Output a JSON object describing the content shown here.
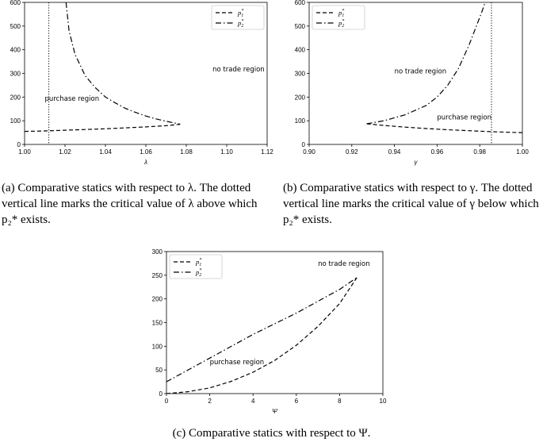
{
  "chart_data": [
    {
      "type": "line",
      "xlabel": "λ",
      "ylabel": "",
      "xlim": [
        1.0,
        1.12
      ],
      "ylim": [
        0,
        600
      ],
      "xticks": [
        "1.00",
        "1.02",
        "1.04",
        "1.06",
        "1.08",
        "1.10",
        "1.12"
      ],
      "yticks": [
        "0",
        "100",
        "200",
        "300",
        "400",
        "500",
        "600"
      ],
      "legend": {
        "placement": "top-right",
        "entries": [
          {
            "base": "p",
            "sub": "1",
            "sup": "*"
          },
          {
            "base": "p",
            "sub": "2",
            "sup": "*"
          }
        ]
      },
      "vline": {
        "x": 1.012,
        "style": "dotted"
      },
      "annotations": [
        {
          "text": "no trade region",
          "x": 1.093,
          "y": 308
        },
        {
          "text": "purchase region",
          "x": 1.01,
          "y": 185
        }
      ],
      "series": [
        {
          "name": "p1*",
          "style": "dashed",
          "x": [
            1.0,
            1.01,
            1.02,
            1.03,
            1.04,
            1.05,
            1.06,
            1.07,
            1.077
          ],
          "y": [
            55,
            57,
            60,
            63,
            66,
            70,
            74,
            79,
            85
          ]
        },
        {
          "name": "p2*",
          "style": "dashdot",
          "x": [
            1.0205,
            1.022,
            1.025,
            1.03,
            1.035,
            1.04,
            1.045,
            1.05,
            1.055,
            1.06,
            1.065,
            1.07,
            1.075,
            1.077
          ],
          "y": [
            600,
            480,
            380,
            290,
            240,
            200,
            175,
            152,
            135,
            120,
            108,
            98,
            89,
            85
          ]
        }
      ]
    },
    {
      "type": "line",
      "xlabel": "γ",
      "ylabel": "",
      "xlim": [
        0.9,
        1.0
      ],
      "ylim": [
        0,
        600
      ],
      "xticks": [
        "0.90",
        "0.92",
        "0.94",
        "0.96",
        "0.98",
        "1.00"
      ],
      "yticks": [
        "0",
        "100",
        "200",
        "300",
        "400",
        "500",
        "600"
      ],
      "legend": {
        "placement": "top-left",
        "entries": [
          {
            "base": "p",
            "sub": "1",
            "sup": "*"
          },
          {
            "base": "p",
            "sub": "2",
            "sup": "*"
          }
        ]
      },
      "vline": {
        "x": 0.9855,
        "style": "dotted"
      },
      "annotations": [
        {
          "text": "no trade region",
          "x": 0.94,
          "y": 300
        },
        {
          "text": "purchase region",
          "x": 0.96,
          "y": 105
        }
      ],
      "series": [
        {
          "name": "p1*",
          "style": "dashed",
          "x": [
            0.927,
            0.935,
            0.945,
            0.955,
            0.965,
            0.975,
            0.985,
            0.995,
            1.0
          ],
          "y": [
            87,
            80,
            73,
            67,
            62,
            58,
            54,
            51,
            50
          ]
        },
        {
          "name": "p2*",
          "style": "dashdot",
          "x": [
            0.927,
            0.935,
            0.945,
            0.955,
            0.96,
            0.965,
            0.97,
            0.975,
            0.978,
            0.981,
            0.9825
          ],
          "y": [
            87,
            100,
            125,
            165,
            200,
            250,
            320,
            420,
            490,
            560,
            600
          ]
        }
      ]
    },
    {
      "type": "line",
      "xlabel": "Ψ",
      "ylabel": "",
      "xlim": [
        0,
        10
      ],
      "ylim": [
        0,
        300
      ],
      "xticks": [
        "0",
        "2",
        "4",
        "6",
        "8",
        "10"
      ],
      "yticks": [
        "0",
        "50",
        "100",
        "150",
        "200",
        "250",
        "300"
      ],
      "legend": {
        "placement": "top-left",
        "entries": [
          {
            "base": "p",
            "sub": "1",
            "sup": "*"
          },
          {
            "base": "p",
            "sub": "2",
            "sup": "*"
          }
        ]
      },
      "annotations": [
        {
          "text": "no trade region",
          "x": 7.0,
          "y": 270
        },
        {
          "text": "purchase region",
          "x": 2.0,
          "y": 62
        }
      ],
      "series": [
        {
          "name": "p1*",
          "style": "dashed",
          "x": [
            0,
            1,
            2,
            3,
            4,
            5,
            6,
            7,
            8,
            8.8
          ],
          "y": [
            0,
            4,
            12,
            26,
            45,
            70,
            102,
            142,
            190,
            245
          ]
        },
        {
          "name": "p2*",
          "style": "dashdot",
          "x": [
            0,
            2,
            4,
            6,
            8,
            8.8
          ],
          "y": [
            25,
            75,
            125,
            170,
            220,
            245
          ]
        }
      ]
    }
  ],
  "captions": {
    "a": "(a) Comparative statics with respect to λ. The dotted vertical line marks the critical value of λ above which p₂* exists.",
    "b": "(b) Comparative statics with respect to γ. The dotted vertical line marks the critical value of γ below which p₂* exists.",
    "c": "(c) Comparative statics with respect to Ψ."
  }
}
